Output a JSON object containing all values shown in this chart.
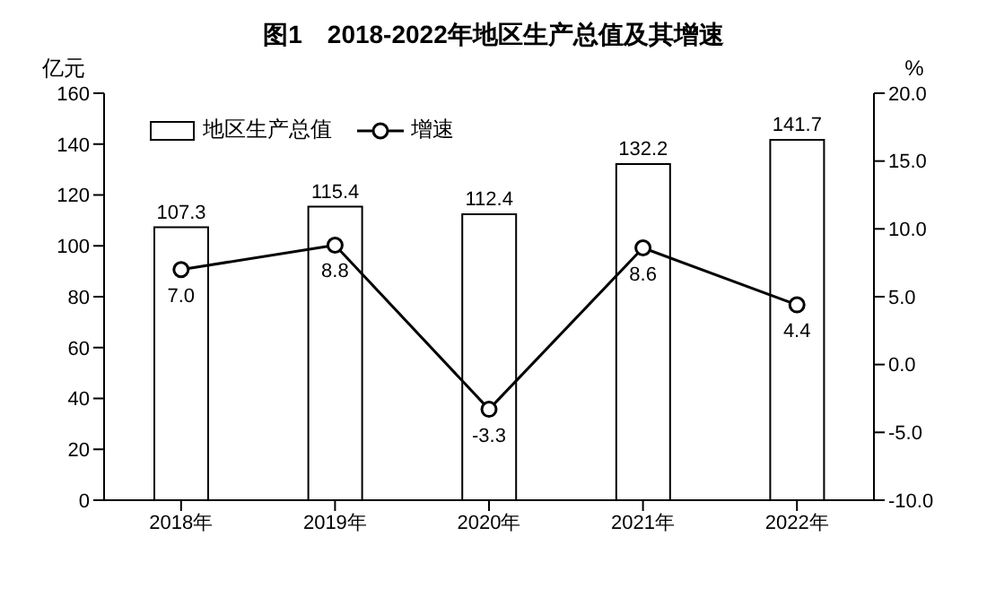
{
  "chart_data": {
    "type": "bar",
    "title": "图1　2018-2022年地区生产总值及其增速",
    "ylabel": "亿元",
    "y2label": "%",
    "categories": [
      "2018年",
      "2019年",
      "2020年",
      "2021年",
      "2022年"
    ],
    "series": [
      {
        "name": "地区生产总值",
        "color": "#ffffff",
        "values": [
          107.3,
          115.4,
          112.4,
          132.2,
          141.7
        ]
      },
      {
        "name": "增速",
        "type": "line",
        "axis": "y2",
        "color": "#000000",
        "values": [
          7.0,
          8.8,
          -3.3,
          8.6,
          4.4
        ],
        "value_labels": [
          "7.0",
          "8.8",
          "-3.3",
          "8.6",
          "4.4"
        ]
      }
    ],
    "ylim": [
      0,
      160
    ],
    "yticks": [
      0,
      20,
      40,
      60,
      80,
      100,
      120,
      140,
      160
    ],
    "y2lim": [
      -10,
      20
    ],
    "y2ticks": [
      {
        "value": -10,
        "label": "-10.0"
      },
      {
        "value": -5,
        "label": "-5.0"
      },
      {
        "value": 0,
        "label": "0.0"
      },
      {
        "value": 5,
        "label": "5.0"
      },
      {
        "value": 10,
        "label": "10.0"
      },
      {
        "value": 15,
        "label": "15.0"
      },
      {
        "value": 20,
        "label": "20.0"
      }
    ],
    "data_labels": true,
    "legend": "top left",
    "marker": "circle",
    "line_style": "solid",
    "grid": false
  }
}
